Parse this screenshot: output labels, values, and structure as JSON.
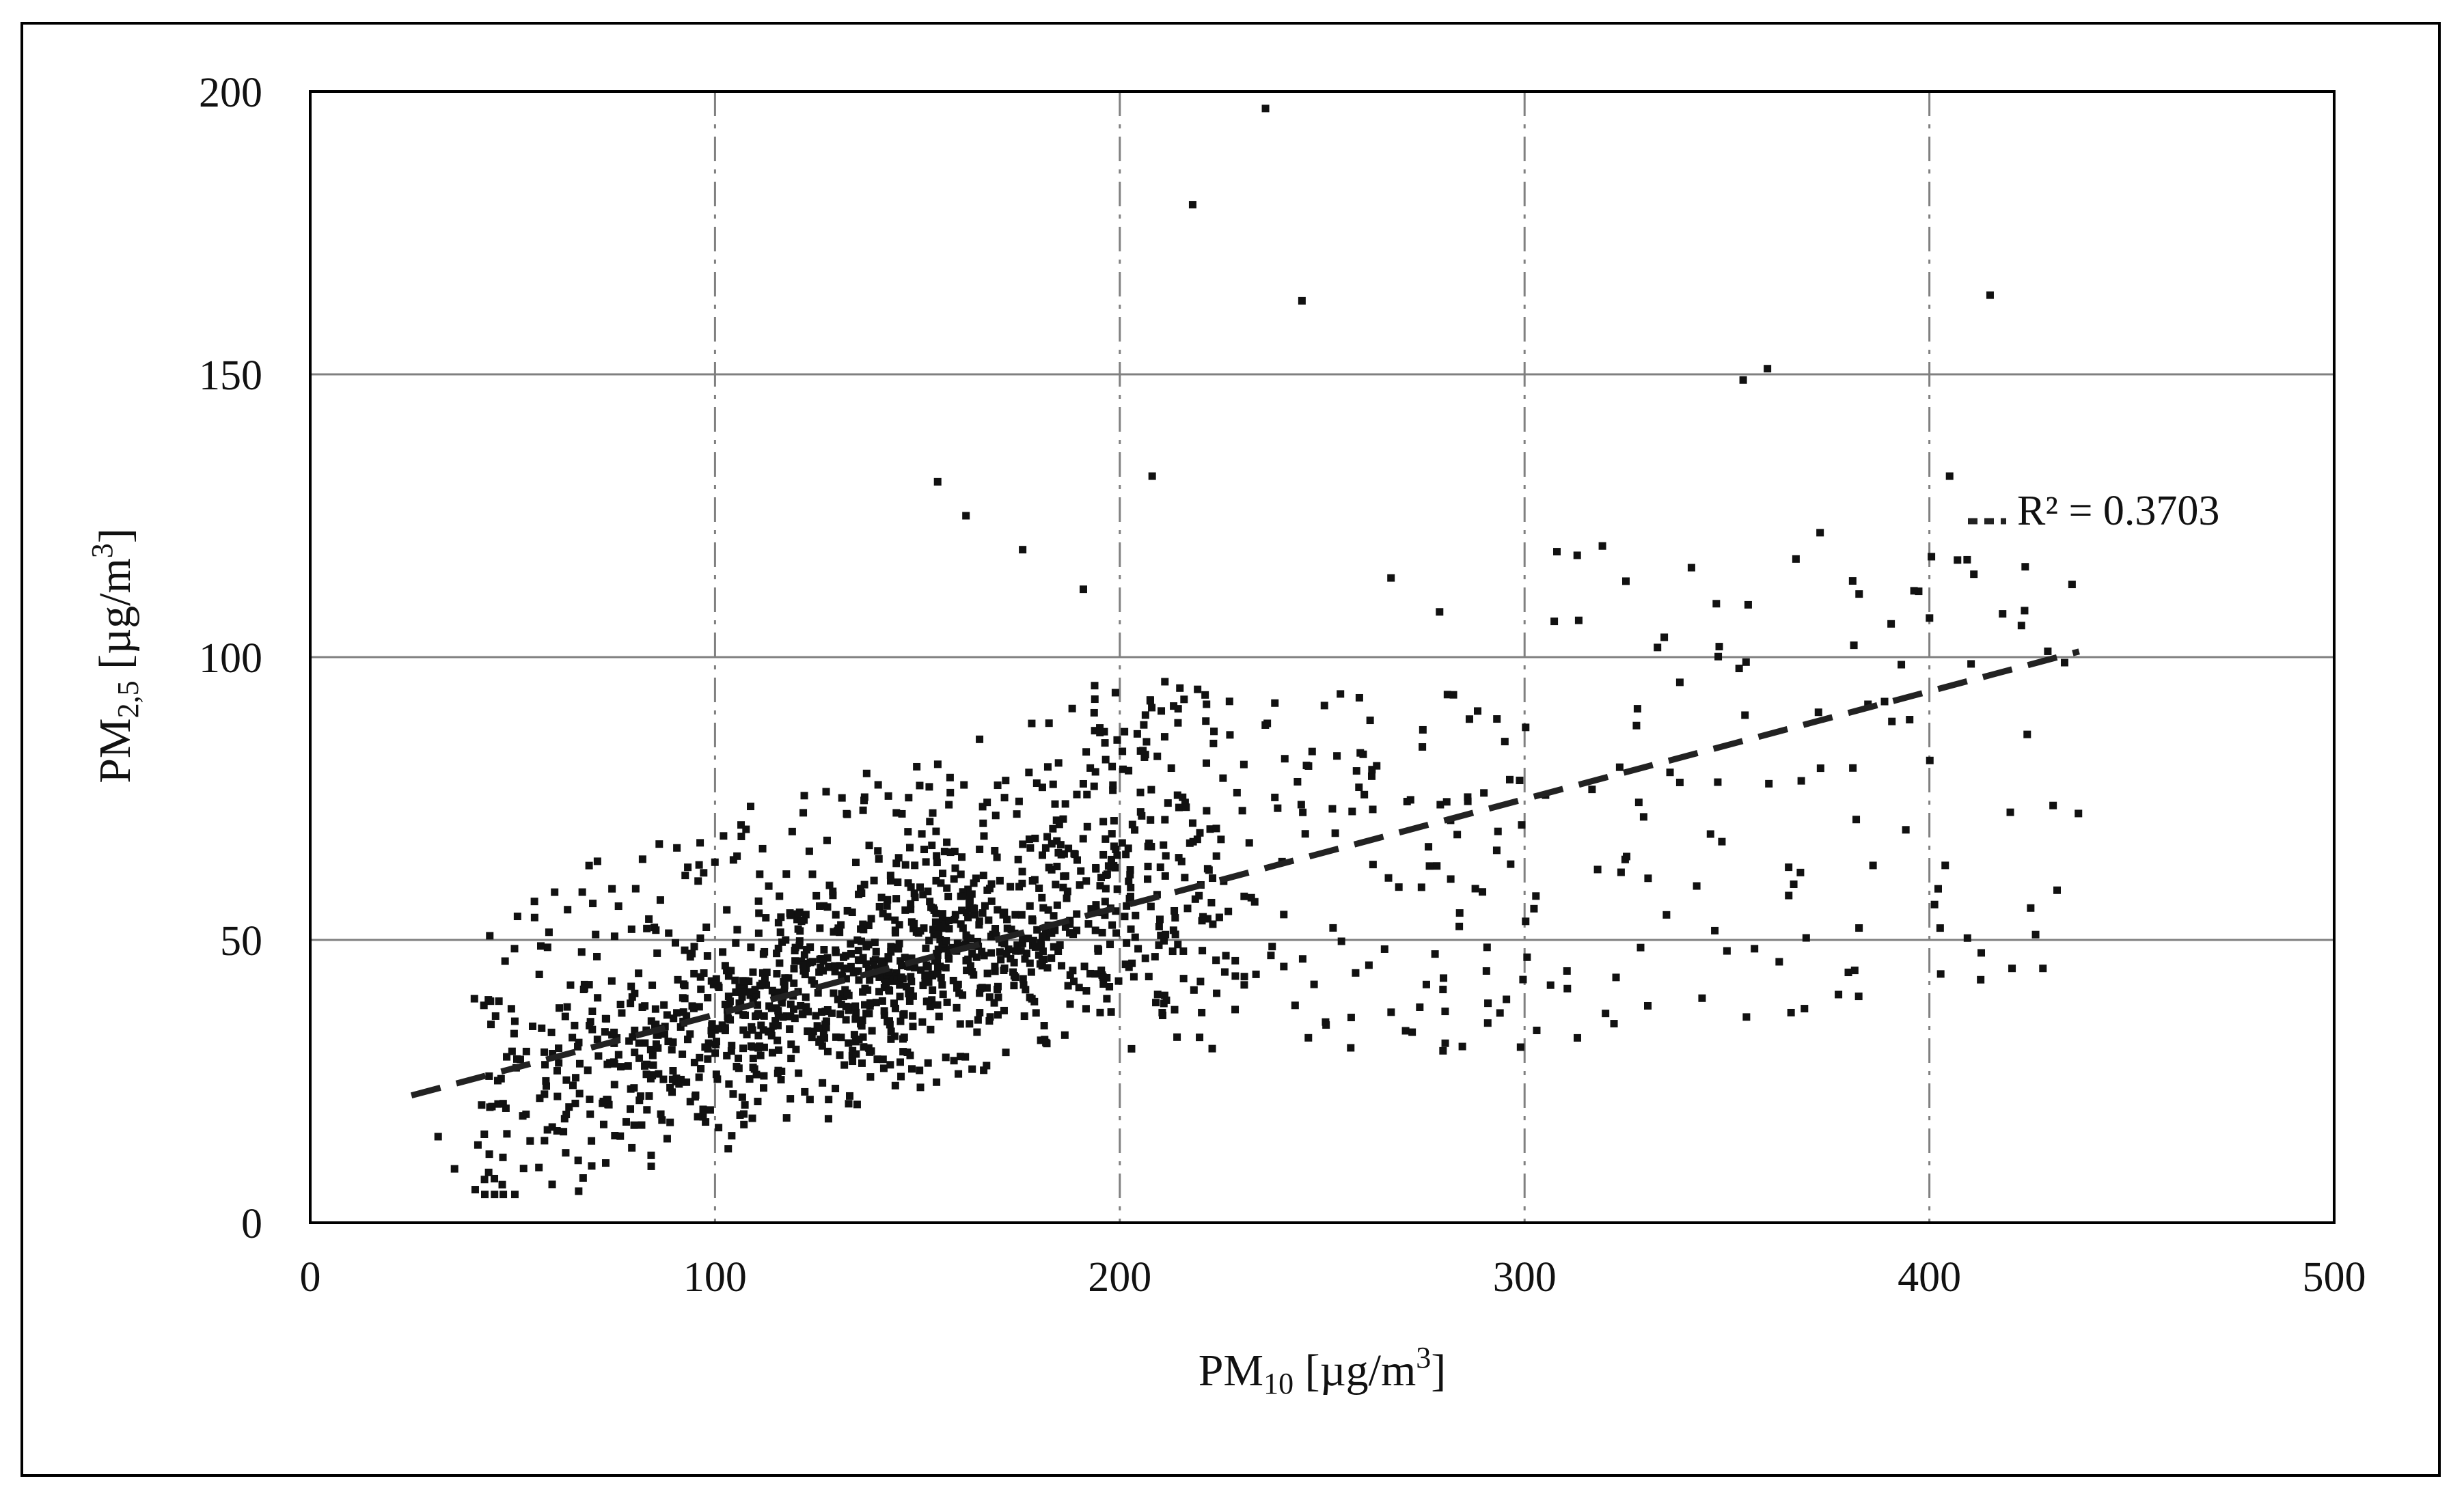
{
  "chart_data": {
    "type": "scatter",
    "title": "",
    "xlabel": {
      "base": "PM",
      "sub": "10",
      "mid": " [µg/m",
      "sup": "3",
      "end": "]"
    },
    "ylabel": {
      "base": "PM",
      "sub": "2,5",
      "mid": " [µg/m",
      "sup": "3",
      "end": "]"
    },
    "xlim": [
      0,
      500
    ],
    "ylim": [
      0,
      200
    ],
    "x_ticks": [
      0,
      100,
      200,
      300,
      400,
      500
    ],
    "y_ticks": [
      0,
      50,
      100,
      150,
      200
    ],
    "grid": {
      "x": "dash-dot vertical",
      "y": "solid horizontal"
    },
    "legend": "none",
    "colors": {
      "points": "#111111",
      "grid": "#808080",
      "trend": "#222222",
      "frame": "#000000"
    },
    "annotation": "R² = 0.3703",
    "trendline": {
      "type": "linear",
      "x": [
        25,
        437
      ],
      "y": [
        22.5,
        101
      ]
    },
    "outliers": {
      "x": [
        236,
        218,
        245,
        415,
        360,
        354,
        155,
        162,
        208,
        176,
        191,
        405,
        313,
        267,
        279,
        373,
        353,
        303,
        320
      ],
      "y": [
        197,
        180,
        163,
        164,
        151,
        149,
        131,
        125,
        132,
        119,
        112,
        132,
        118,
        114,
        108,
        122,
        98,
        34,
        37
      ]
    },
    "cloud": {
      "count": 1600,
      "x_range": [
        25,
        440
      ],
      "y_range": [
        5,
        125
      ],
      "description": "dense cluster 100-200 x, 20-70 y"
    }
  }
}
